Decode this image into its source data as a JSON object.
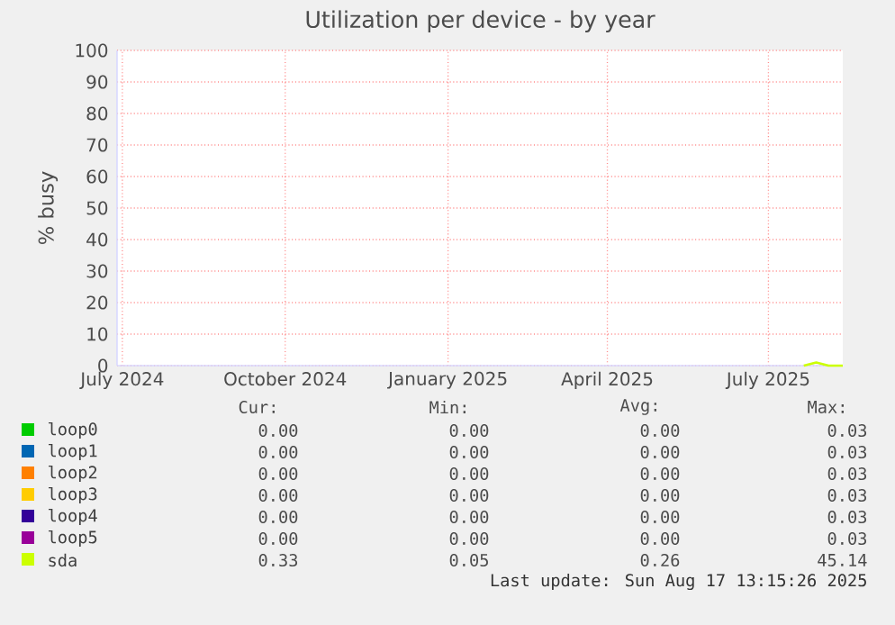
{
  "chart_data": {
    "type": "line",
    "title": "Utilization per device - by year",
    "ylabel": "% busy",
    "xlim": [
      "2024-06-28",
      "2025-08-12"
    ],
    "ylim": [
      0,
      100
    ],
    "xticks": [
      {
        "value": "2024-07-01",
        "label": "July 2024"
      },
      {
        "value": "2024-10-01",
        "label": "October 2024"
      },
      {
        "value": "2025-01-01",
        "label": "January 2025"
      },
      {
        "value": "2025-04-01",
        "label": "April 2025"
      },
      {
        "value": "2025-07-01",
        "label": "July 2025"
      }
    ],
    "yticks": [
      0,
      10,
      20,
      30,
      40,
      50,
      60,
      70,
      80,
      90,
      100
    ],
    "grid": true,
    "legend": "bottom",
    "marker": "none",
    "line_style": "solid",
    "series": [
      {
        "name": "loop0",
        "color": "#00cc00"
      },
      {
        "name": "loop1",
        "color": "#0066b3"
      },
      {
        "name": "loop2",
        "color": "#ff8000"
      },
      {
        "name": "loop3",
        "color": "#ffcc00"
      },
      {
        "name": "loop4",
        "color": "#330099"
      },
      {
        "name": "loop5",
        "color": "#990099"
      },
      {
        "name": "sda",
        "color": "#ccff00",
        "x": [
          "2025-07-21",
          "2025-07-28",
          "2025-08-04",
          "2025-08-12"
        ],
        "values": [
          0,
          1,
          0,
          0
        ]
      }
    ],
    "annotations": [
      "Cur:",
      "Min:",
      "Avg:",
      "Max:",
      "0.00",
      "0.00",
      "0.00",
      "0.03",
      "0.00",
      "0.00",
      "0.00",
      "0.03",
      "0.00",
      "0.00",
      "0.00",
      "0.03",
      "0.00",
      "0.00",
      "0.00",
      "0.03",
      "0.00",
      "0.00",
      "0.00",
      "0.03",
      "0.00",
      "0.00",
      "0.00",
      "0.03",
      "0.33",
      "0.05",
      "0.26",
      "45.14",
      "Last update: Sun Aug 17 13:15:26 2025"
    ]
  }
}
